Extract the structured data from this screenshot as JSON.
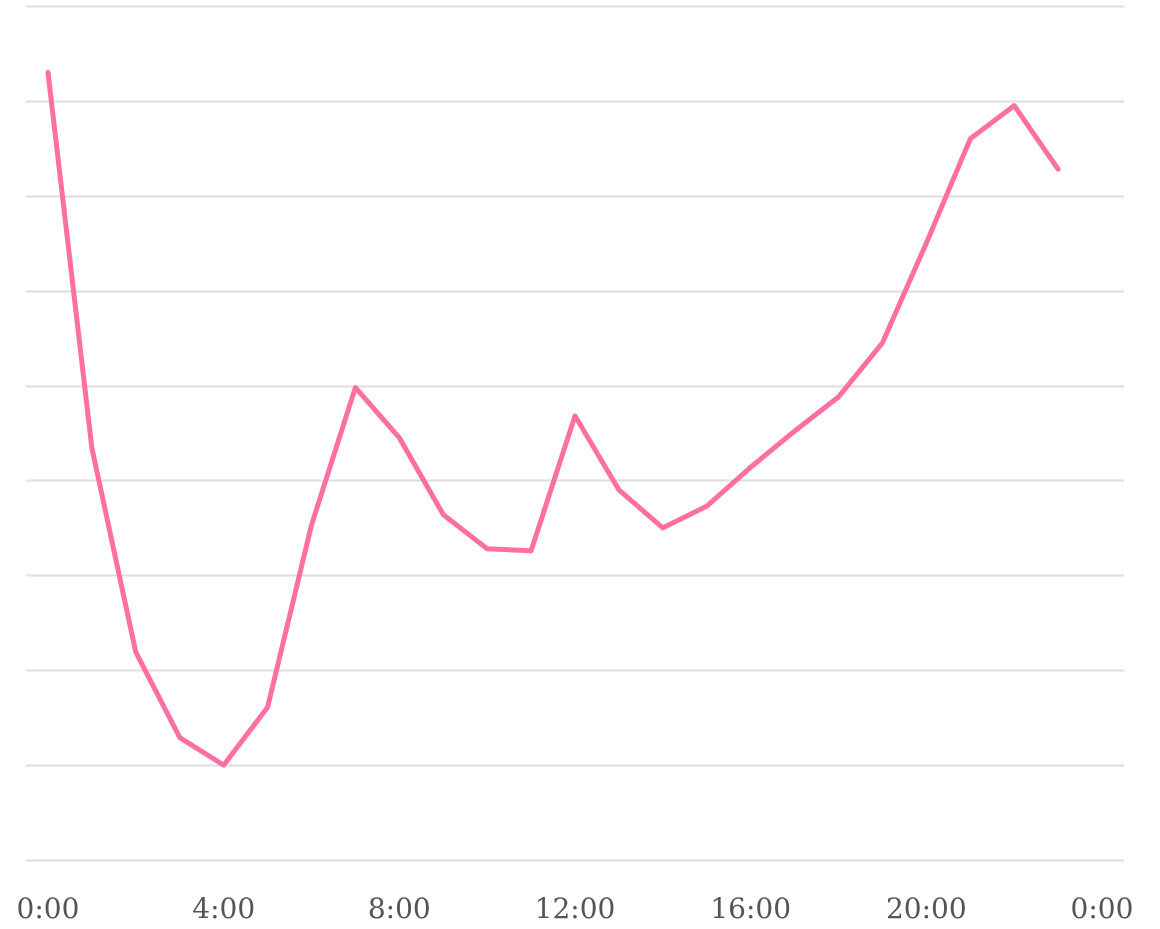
{
  "colors": {
    "line": "#ff6f9f",
    "grid": "#dedede",
    "tick_label": "#555555",
    "background": "#ffffff"
  },
  "chart_data": {
    "type": "line",
    "title": "",
    "xlabel": "",
    "ylabel": "",
    "grid": true,
    "x_unit": "hour of day",
    "x": [
      0,
      1,
      2,
      3,
      4,
      5,
      6,
      7,
      8,
      9,
      10,
      11,
      12,
      13,
      14,
      15,
      16,
      17,
      18,
      19,
      20,
      21,
      22,
      23
    ],
    "xlim": [
      0,
      24
    ],
    "x_ticks": [
      {
        "value": 0,
        "label": "0:00"
      },
      {
        "value": 4,
        "label": "4:00"
      },
      {
        "value": 8,
        "label": "8:00"
      },
      {
        "value": 12,
        "label": "12:00"
      },
      {
        "value": 16,
        "label": "16:00"
      },
      {
        "value": 20,
        "label": "20:00"
      },
      {
        "value": 24,
        "label": "0:00"
      }
    ],
    "ylim": [
      0,
      9
    ],
    "y_gridlines": [
      0,
      1,
      2,
      3,
      4,
      5,
      6,
      7,
      8,
      9
    ],
    "series": [
      {
        "values": [
          8.3,
          4.34,
          2.19,
          1.29,
          1.0,
          1.61,
          3.53,
          4.98,
          4.45,
          3.64,
          3.28,
          3.26,
          4.68,
          3.9,
          3.5,
          3.73,
          4.14,
          4.52,
          4.88,
          5.45,
          6.5,
          7.6,
          7.95,
          7.28
        ]
      }
    ]
  }
}
